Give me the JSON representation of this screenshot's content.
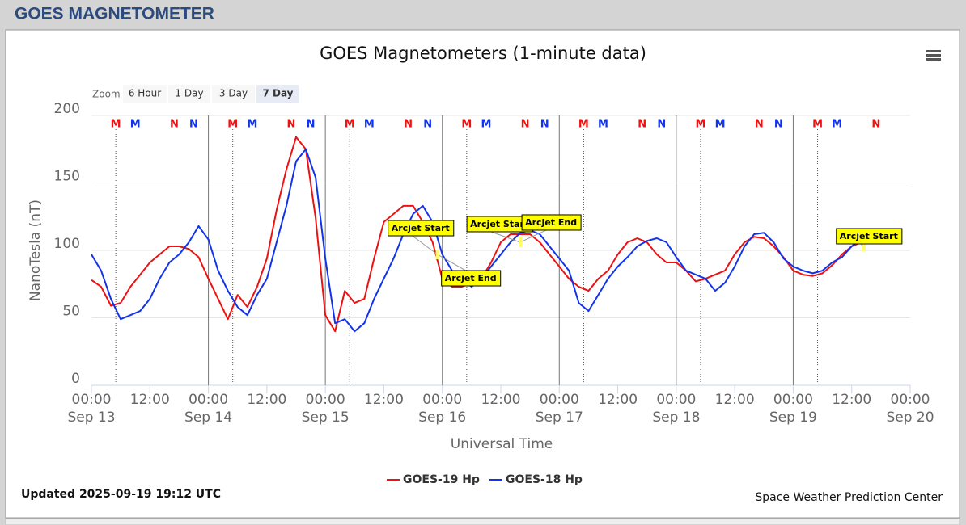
{
  "header": {
    "title": "GOES MAGNETOMETER"
  },
  "zoom": {
    "label": "Zoom",
    "buttons": [
      "6 Hour",
      "1 Day",
      "3 Day",
      "7 Day"
    ],
    "selected": 3
  },
  "chart_data": {
    "type": "line",
    "title": "GOES Magnetometers (1-minute data)",
    "x_label": "Universal Time",
    "y_label": "NanoTesla (nT)",
    "xlim": [
      "Sep 13 00:00",
      "Sep 20 00:00"
    ],
    "xticks": [
      {
        "value": "Sep 13 00:00",
        "label": "00:00",
        "date": "Sep 13"
      },
      {
        "value": "Sep 13 12:00",
        "label": "12:00"
      },
      {
        "value": "Sep 14 00:00",
        "label": "00:00",
        "date": "Sep 14"
      },
      {
        "value": "Sep 14 12:00",
        "label": "12:00"
      },
      {
        "value": "Sep 15 00:00",
        "label": "00:00",
        "date": "Sep 15"
      },
      {
        "value": "Sep 15 12:00",
        "label": "12:00"
      },
      {
        "value": "Sep 16 00:00",
        "label": "00:00",
        "date": "Sep 16"
      },
      {
        "value": "Sep 16 12:00",
        "label": "12:00"
      },
      {
        "value": "Sep 17 00:00",
        "label": "00:00",
        "date": "Sep 17"
      },
      {
        "value": "Sep 17 12:00",
        "label": "12:00"
      },
      {
        "value": "Sep 18 00:00",
        "label": "00:00",
        "date": "Sep 18"
      },
      {
        "value": "Sep 18 12:00",
        "label": "12:00"
      },
      {
        "value": "Sep 19 00:00",
        "label": "00:00",
        "date": "Sep 19"
      },
      {
        "value": "Sep 19 12:00",
        "label": "12:00"
      },
      {
        "value": "Sep 20 00:00",
        "label": "00:00",
        "date": "Sep 20"
      }
    ],
    "ylim": [
      0,
      200
    ],
    "yticks": [
      0,
      50,
      100,
      150,
      200
    ],
    "grid": true,
    "day_lines": true,
    "x": [
      "Sep 13 00:00",
      "Sep 13 02:00",
      "Sep 13 04:00",
      "Sep 13 06:00",
      "Sep 13 08:00",
      "Sep 13 10:00",
      "Sep 13 12:00",
      "Sep 13 14:00",
      "Sep 13 16:00",
      "Sep 13 18:00",
      "Sep 13 20:00",
      "Sep 13 22:00",
      "Sep 14 00:00",
      "Sep 14 02:00",
      "Sep 14 04:00",
      "Sep 14 06:00",
      "Sep 14 08:00",
      "Sep 14 10:00",
      "Sep 14 12:00",
      "Sep 14 14:00",
      "Sep 14 16:00",
      "Sep 14 18:00",
      "Sep 14 20:00",
      "Sep 14 22:00",
      "Sep 15 00:00",
      "Sep 15 02:00",
      "Sep 15 04:00",
      "Sep 15 06:00",
      "Sep 15 08:00",
      "Sep 15 10:00",
      "Sep 15 12:00",
      "Sep 15 14:00",
      "Sep 15 16:00",
      "Sep 15 18:00",
      "Sep 15 20:00",
      "Sep 15 22:00",
      "Sep 16 00:00",
      "Sep 16 02:00",
      "Sep 16 04:00",
      "Sep 16 06:00",
      "Sep 16 08:00",
      "Sep 16 10:00",
      "Sep 16 12:00",
      "Sep 16 14:00",
      "Sep 16 16:00",
      "Sep 16 18:00",
      "Sep 16 20:00",
      "Sep 16 22:00",
      "Sep 17 00:00",
      "Sep 17 02:00",
      "Sep 17 04:00",
      "Sep 17 06:00",
      "Sep 17 08:00",
      "Sep 17 10:00",
      "Sep 17 12:00",
      "Sep 17 14:00",
      "Sep 17 16:00",
      "Sep 17 18:00",
      "Sep 17 20:00",
      "Sep 17 22:00",
      "Sep 18 00:00",
      "Sep 18 02:00",
      "Sep 18 04:00",
      "Sep 18 06:00",
      "Sep 18 08:00",
      "Sep 18 10:00",
      "Sep 18 12:00",
      "Sep 18 14:00",
      "Sep 18 16:00",
      "Sep 18 18:00",
      "Sep 18 20:00",
      "Sep 18 22:00",
      "Sep 19 00:00",
      "Sep 19 02:00",
      "Sep 19 04:00",
      "Sep 19 06:00",
      "Sep 19 08:00",
      "Sep 19 10:00",
      "Sep 19 12:00",
      "Sep 19 14:00"
    ],
    "series": [
      {
        "name": "GOES-19 Hp",
        "color": "#ee1111",
        "values": [
          78,
          73,
          59,
          61,
          73,
          82,
          91,
          97,
          103,
          103,
          101,
          95,
          79,
          64,
          49,
          67,
          58,
          73,
          94,
          130,
          160,
          184,
          175,
          124,
          52,
          40,
          70,
          61,
          64,
          94,
          121,
          127,
          133,
          133,
          121,
          106,
          79,
          73,
          73,
          76,
          79,
          91,
          106,
          112,
          112,
          112,
          106,
          97,
          88,
          79,
          73,
          70,
          79,
          85,
          97,
          106,
          109,
          106,
          97,
          91,
          91,
          85,
          77,
          79,
          82,
          85,
          97,
          106,
          110,
          109,
          103,
          95,
          85,
          82,
          81,
          83,
          89,
          97,
          103,
          106
        ]
      },
      {
        "name": "GOES-18 Hp",
        "color": "#1133ee",
        "values": [
          97,
          85,
          64,
          49,
          52,
          55,
          64,
          79,
          91,
          97,
          106,
          118,
          108,
          85,
          70,
          58,
          52,
          67,
          79,
          106,
          133,
          166,
          175,
          154,
          94,
          46,
          49,
          40,
          46,
          64,
          79,
          94,
          112,
          127,
          133,
          121,
          97,
          85,
          79,
          73,
          79,
          88,
          97,
          106,
          113,
          115,
          112,
          103,
          94,
          85,
          61,
          55,
          67,
          79,
          88,
          95,
          103,
          107,
          109,
          106,
          95,
          85,
          82,
          79,
          70,
          76,
          88,
          103,
          112,
          113,
          106,
          94,
          88,
          85,
          83,
          85,
          91,
          95,
          103,
          109
        ]
      }
    ],
    "markers": [
      {
        "label": "M",
        "color": "#ee1111",
        "x": "Sep 13 05:00"
      },
      {
        "label": "M",
        "color": "#1133ee",
        "x": "Sep 13 09:00"
      },
      {
        "label": "N",
        "color": "#ee1111",
        "x": "Sep 13 17:00"
      },
      {
        "label": "N",
        "color": "#1133ee",
        "x": "Sep 13 21:00"
      },
      {
        "label": "M",
        "color": "#ee1111",
        "x": "Sep 14 05:00"
      },
      {
        "label": "M",
        "color": "#1133ee",
        "x": "Sep 14 09:00"
      },
      {
        "label": "N",
        "color": "#ee1111",
        "x": "Sep 14 17:00"
      },
      {
        "label": "N",
        "color": "#1133ee",
        "x": "Sep 14 21:00"
      },
      {
        "label": "M",
        "color": "#ee1111",
        "x": "Sep 15 05:00"
      },
      {
        "label": "M",
        "color": "#1133ee",
        "x": "Sep 15 09:00"
      },
      {
        "label": "N",
        "color": "#ee1111",
        "x": "Sep 15 17:00"
      },
      {
        "label": "N",
        "color": "#1133ee",
        "x": "Sep 15 21:00"
      },
      {
        "label": "M",
        "color": "#ee1111",
        "x": "Sep 16 05:00"
      },
      {
        "label": "M",
        "color": "#1133ee",
        "x": "Sep 16 09:00"
      },
      {
        "label": "N",
        "color": "#ee1111",
        "x": "Sep 16 17:00"
      },
      {
        "label": "N",
        "color": "#1133ee",
        "x": "Sep 16 21:00"
      },
      {
        "label": "M",
        "color": "#ee1111",
        "x": "Sep 17 05:00"
      },
      {
        "label": "M",
        "color": "#1133ee",
        "x": "Sep 17 09:00"
      },
      {
        "label": "N",
        "color": "#ee1111",
        "x": "Sep 17 17:00"
      },
      {
        "label": "N",
        "color": "#1133ee",
        "x": "Sep 17 21:00"
      },
      {
        "label": "M",
        "color": "#ee1111",
        "x": "Sep 18 05:00"
      },
      {
        "label": "M",
        "color": "#1133ee",
        "x": "Sep 18 09:00"
      },
      {
        "label": "N",
        "color": "#ee1111",
        "x": "Sep 18 17:00"
      },
      {
        "label": "N",
        "color": "#1133ee",
        "x": "Sep 18 21:00"
      },
      {
        "label": "M",
        "color": "#ee1111",
        "x": "Sep 19 05:00"
      },
      {
        "label": "M",
        "color": "#1133ee",
        "x": "Sep 19 09:00"
      },
      {
        "label": "N",
        "color": "#ee1111",
        "x": "Sep 19 17:00"
      }
    ],
    "annotations": [
      {
        "text": "Arcjet Start",
        "x": "Sep 15 23:00",
        "y": 97
      },
      {
        "text": "Arcjet End",
        "x": "Sep 15 23:00",
        "y": 97
      },
      {
        "text": "Arcjet Start",
        "x": "Sep 16 16:00",
        "y": 106
      },
      {
        "text": "Arcjet End",
        "x": "Sep 16 16:00",
        "y": 106
      },
      {
        "text": "Arcjet Start",
        "x": "Sep 19 14:30",
        "y": 103
      }
    ]
  },
  "footer": {
    "updated": "Updated 2025-09-19 19:12 UTC",
    "credit": "Space Weather Prediction Center"
  }
}
